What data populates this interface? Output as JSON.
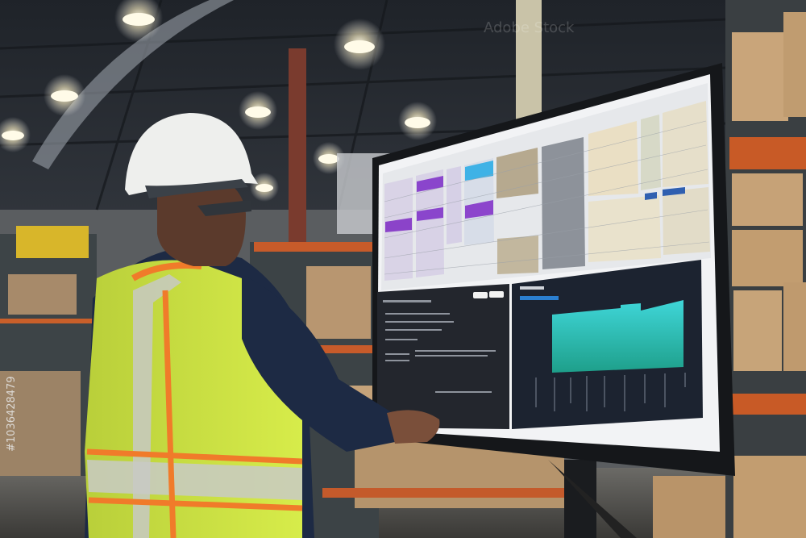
{
  "watermark": {
    "brand": "Adobe Stock",
    "id": "#1036428479"
  }
}
